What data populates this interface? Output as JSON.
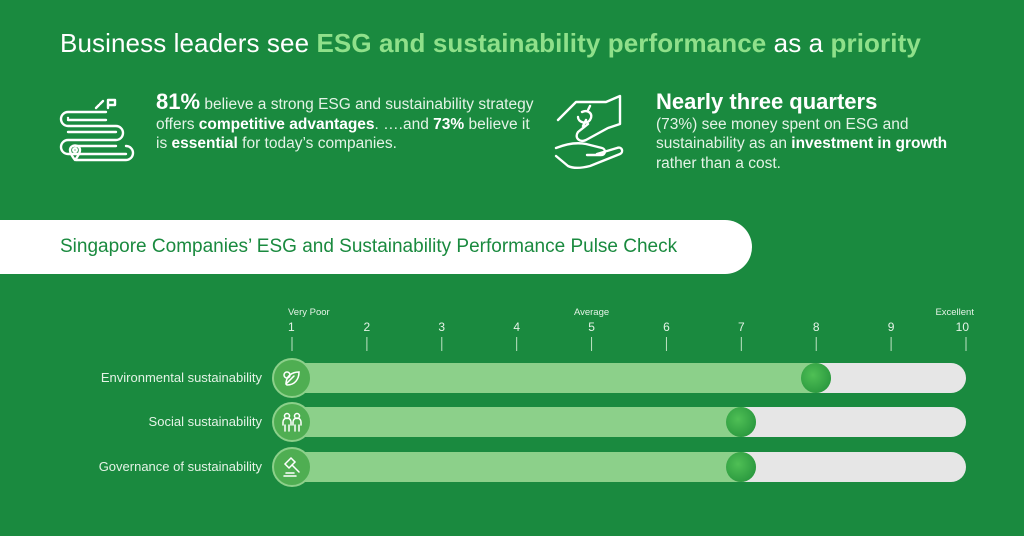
{
  "headline": {
    "prefix": "Business leaders see ",
    "highlight1": "ESG and sustainability performance",
    "middle": " as a ",
    "highlight2": "priority"
  },
  "stat1": {
    "big": "81%",
    "t1": " believe a strong ESG and sustainability strategy offers ",
    "b1": "competitive advantages",
    "t2": ". ….and ",
    "b2": "73%",
    "t3": " believe it is ",
    "b3": "essential",
    "t4": " for today’s companies."
  },
  "stat2": {
    "big": "Nearly three quarters",
    "t1": "(73%) see money spent on ESG and sustainability as an ",
    "b1": "investment in growth",
    "t2": " rather than a cost."
  },
  "banner": {
    "title": "Singapore Companies’ ESG and Sustainability Performance Pulse Check"
  },
  "colors": {
    "background": "#1a8a3f",
    "highlight": "#8fe08a",
    "bar_fill": "#8cd08a",
    "bar_track": "#e6e6e6",
    "knob": "#2f9e45"
  },
  "chart_data": {
    "type": "bar",
    "orientation": "horizontal",
    "title": "Singapore Companies’ ESG and Sustainability Performance Pulse Check",
    "xlim": [
      1,
      10
    ],
    "ticks": [
      "1",
      "2",
      "3",
      "4",
      "5",
      "6",
      "7",
      "8",
      "9",
      "10"
    ],
    "tick_annotations": [
      {
        "at": 1,
        "label": "Very Poor"
      },
      {
        "at": 5,
        "label": "Average"
      },
      {
        "at": 10,
        "label": "Excellent"
      }
    ],
    "categories": [
      "Environmental sustainability",
      "Social sustainability",
      "Governance of sustainability"
    ],
    "icons": [
      "leaf-icon",
      "people-icon",
      "gavel-icon"
    ],
    "values": [
      8.0,
      7.0,
      7.0
    ]
  }
}
